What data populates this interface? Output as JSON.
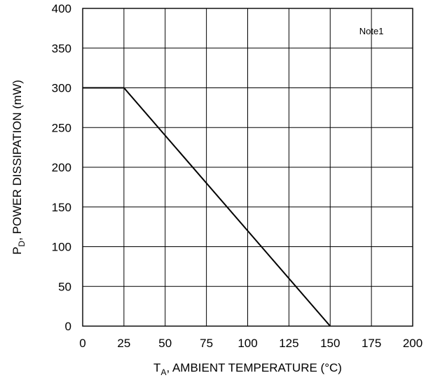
{
  "chart_data": {
    "type": "line",
    "title": "",
    "xlabel": {
      "main": "T",
      "sub": "A",
      "rest": ", AMBIENT TEMPERATURE (°C)"
    },
    "ylabel": {
      "main": "P",
      "sub": "D",
      "rest": ", POWER DISSIPATION (mW)"
    },
    "xlim": [
      0,
      200
    ],
    "ylim": [
      0,
      400
    ],
    "xticks": [
      0,
      25,
      50,
      75,
      100,
      125,
      150,
      175,
      200
    ],
    "yticks": [
      0,
      50,
      100,
      150,
      200,
      250,
      300,
      350,
      400
    ],
    "grid": true,
    "series": [
      {
        "x": [
          0,
          25,
          150
        ],
        "y": [
          300,
          300,
          0
        ]
      }
    ],
    "annotations": [
      {
        "text": "Note1",
        "x": 175,
        "y": 372
      }
    ]
  }
}
